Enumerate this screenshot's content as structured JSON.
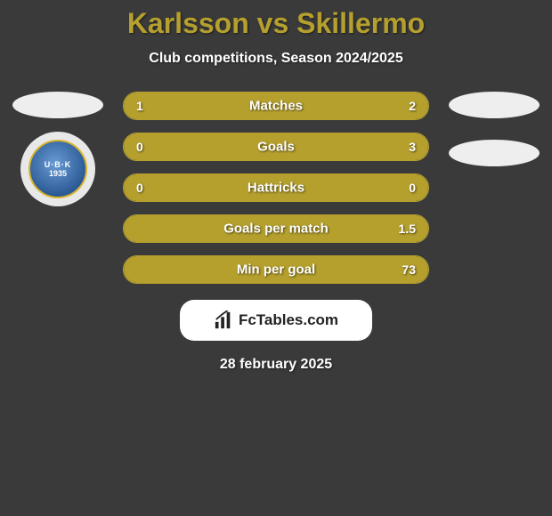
{
  "header": {
    "title": "Karlsson vs Skillermo",
    "subtitle": "Club competitions, Season 2024/2025"
  },
  "left_side": {
    "badge_top": "U·B·K",
    "badge_year": "1935"
  },
  "colors": {
    "accent": "#b5a02e",
    "background": "#3a3a3a",
    "text": "#ffffff"
  },
  "stats": [
    {
      "label": "Matches",
      "left_val": "1",
      "right_val": "2",
      "left_pct": 33,
      "right_pct": 67
    },
    {
      "label": "Goals",
      "left_val": "0",
      "right_val": "3",
      "left_pct": 5,
      "right_pct": 95
    },
    {
      "label": "Hattricks",
      "left_val": "0",
      "right_val": "0",
      "left_pct": 50,
      "right_pct": 50
    },
    {
      "label": "Goals per match",
      "left_val": "",
      "right_val": "1.5",
      "left_pct": 5,
      "right_pct": 95
    },
    {
      "label": "Min per goal",
      "left_val": "",
      "right_val": "73",
      "left_pct": 5,
      "right_pct": 95
    }
  ],
  "footer": {
    "brand": "FcTables.com",
    "date": "28 february 2025"
  }
}
